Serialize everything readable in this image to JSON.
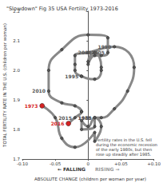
{
  "chart_data": {
    "type": "line",
    "title": "\"Slowdown\" Fig 35 USA Fertility 1973-2016",
    "x_label": "ABSOLUTE CHANGE (children per woman per year)",
    "x_direction_labels": [
      "FALLING",
      "RISING"
    ],
    "y_label": "TOTAL FERTILITY RATE IN THE U.S. (children per woman)",
    "annotation": [
      "Fertility rates in the U.S. fell",
      "during the economic recession",
      "of the early 1980s, but then",
      "rose up steadily after 1985."
    ],
    "series": [
      {
        "name": "USA",
        "marker": "circle",
        "line_style": "solid",
        "x": [
          -0.07,
          -0.05,
          -0.04,
          -0.02,
          0.01,
          0.01,
          0.02,
          0.01,
          0.0,
          -0.01,
          -0.01,
          0.01,
          0.01,
          0.02,
          0.04,
          0.06,
          0.07,
          0.04,
          0.0,
          -0.02,
          -0.02,
          -0.02,
          -0.01,
          -0.01,
          0.01,
          0.02,
          0.02,
          0.01,
          0.0,
          0.0,
          0.01,
          0.02,
          0.03,
          0.03,
          0.0,
          -0.04,
          -0.06,
          -0.06,
          -0.04,
          -0.02,
          -0.01,
          -0.01,
          -0.02,
          -0.03
        ],
        "values": [
          1.88,
          1.84,
          1.77,
          1.74,
          1.79,
          1.76,
          1.81,
          1.84,
          1.81,
          1.83,
          1.8,
          1.81,
          1.84,
          1.84,
          1.87,
          1.93,
          2.01,
          2.08,
          2.06,
          2.05,
          2.02,
          2.0,
          1.98,
          1.98,
          1.97,
          2.0,
          2.01,
          2.06,
          2.03,
          2.02,
          2.05,
          2.05,
          2.06,
          2.11,
          2.12,
          2.07,
          2.0,
          1.93,
          1.89,
          1.88,
          1.86,
          1.86,
          1.84,
          1.82
        ],
        "labels": [
          "1973",
          null,
          null,
          null,
          null,
          null,
          null,
          "1980",
          null,
          null,
          null,
          null,
          "1985",
          null,
          null,
          null,
          null,
          "1990",
          null,
          null,
          null,
          null,
          "1995",
          null,
          null,
          null,
          null,
          "2000",
          null,
          null,
          null,
          null,
          "2005",
          null,
          null,
          null,
          null,
          "2010",
          null,
          null,
          null,
          null,
          "2015",
          "2016"
        ],
        "colors": [
          "#d62222",
          "#555555",
          "#555555",
          "#555555",
          "#555555",
          "#555555",
          "#555555",
          "#555555",
          "#555555",
          "#555555",
          "#555555",
          "#555555",
          "#555555",
          "#555555",
          "#555555",
          "#555555",
          "#555555",
          "#555555",
          "#555555",
          "#555555",
          "#555555",
          "#555555",
          "#555555",
          "#555555",
          "#555555",
          "#555555",
          "#555555",
          "#555555",
          "#555555",
          "#555555",
          "#555555",
          "#555555",
          "#555555",
          "#555555",
          "#555555",
          "#555555",
          "#555555",
          "#555555",
          "#555555",
          "#555555",
          "#555555",
          "#555555",
          "#555555",
          "#d62222"
        ],
        "color": "#888888"
      }
    ],
    "xlim": [
      -0.1,
      0.1
    ],
    "xticks": [
      {
        "value": -0.1,
        "label": "-0.10"
      },
      {
        "value": -0.05,
        "label": "-0.05"
      },
      0,
      {
        "value": 0.05,
        "label": "+0.05"
      },
      {
        "value": 0.1,
        "label": "+0.10"
      }
    ],
    "ylim": [
      1.7,
      2.2
    ],
    "yticks": [
      1.7,
      1.8,
      1.9,
      {
        "value": 2,
        "label": "2.0"
      },
      2.1,
      2.2
    ],
    "grid": false,
    "tick_labels": true
  }
}
